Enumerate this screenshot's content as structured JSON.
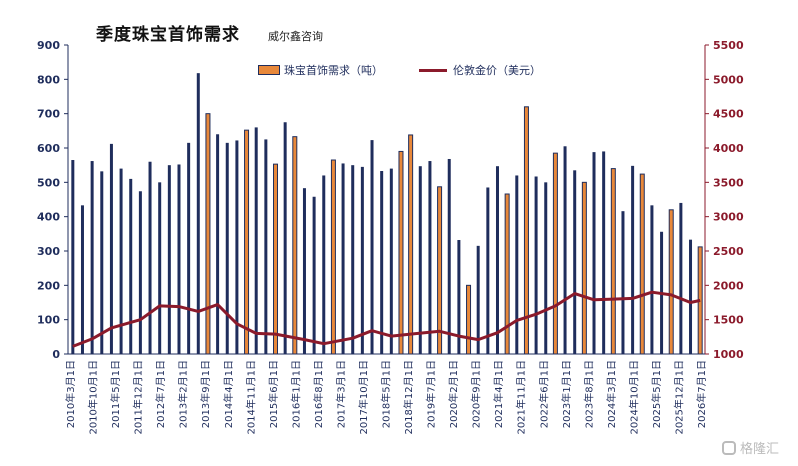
{
  "chart_data": {
    "type": "bar",
    "title": "季度珠宝首饰需求",
    "subtitle": "威尔鑫咨询",
    "left_axis_ticks": [
      "0",
      "100",
      "200",
      "300",
      "400",
      "500",
      "600",
      "700",
      "800",
      "900"
    ],
    "right_axis_ticks": [
      "1000",
      "1500",
      "2000",
      "2500",
      "3000",
      "3500",
      "4000",
      "4500",
      "5000",
      "5500"
    ],
    "ylim": [
      0,
      900
    ],
    "y2lim": [
      1000,
      5500
    ],
    "grid": false,
    "legend_position": "top-center",
    "x_tick_labels": [
      "2010年3月1日",
      "2010年10月1日",
      "2011年5月1日",
      "2011年12月1日",
      "2012年7月1日",
      "2013年2月1日",
      "2013年9月1日",
      "2014年4月1日",
      "2014年11月1日",
      "2015年6月1日",
      "2016年1月1日",
      "2016年8月1日",
      "2017年3月1日",
      "2017年10月1日",
      "2018年5月1日",
      "2018年12月1日",
      "2019年7月1日",
      "2020年2月1日",
      "2020年9月1日",
      "2021年4月1日",
      "2021年11月1日",
      "2022年6月1日",
      "2023年1月1日",
      "2023年8月1日",
      "2024年3月1日",
      "2024年10月1日",
      "2025年5月1日",
      "2025年12月1日",
      "2026年7月1日"
    ],
    "series": [
      {
        "name": "珠宝首饰需求（吨）",
        "type": "bar",
        "color": "#e8883a",
        "outline": "#1f2d5c",
        "values": [
          565,
          433,
          562,
          532,
          612,
          540,
          510,
          474,
          560,
          500,
          550,
          552,
          615,
          818,
          700,
          640,
          615,
          622,
          652,
          660,
          625,
          553,
          675,
          633,
          483,
          458,
          520,
          565,
          555,
          550,
          545,
          623,
          533,
          540,
          590,
          638,
          547,
          562,
          487,
          568,
          332,
          200,
          315,
          485,
          547,
          466,
          520,
          720,
          517,
          500,
          585,
          605,
          535,
          500,
          588,
          590,
          540,
          416,
          548,
          524,
          433,
          356,
          420,
          440,
          333,
          312
        ],
        "highlighted_indices": [
          14,
          18,
          21,
          23,
          27,
          34,
          35,
          38,
          41,
          45,
          47,
          50,
          53,
          56,
          59,
          62,
          65
        ]
      },
      {
        "name": "伦敦金价（美元）",
        "type": "line",
        "color": "#8b1a2b",
        "x_index": [
          0,
          2,
          4,
          7,
          9,
          11,
          13,
          15,
          17,
          19,
          21,
          24,
          26,
          29,
          31,
          33,
          35,
          38,
          40,
          42,
          44,
          46,
          48,
          50,
          52,
          54,
          56,
          58,
          60,
          62,
          64,
          65
        ],
        "values": [
          1110,
          1220,
          1380,
          1500,
          1700,
          1690,
          1620,
          1720,
          1440,
          1300,
          1290,
          1210,
          1150,
          1230,
          1340,
          1260,
          1290,
          1330,
          1260,
          1210,
          1310,
          1490,
          1580,
          1700,
          1880,
          1790,
          1800,
          1810,
          1900,
          1860,
          1750,
          1780
        ]
      }
    ]
  }
}
